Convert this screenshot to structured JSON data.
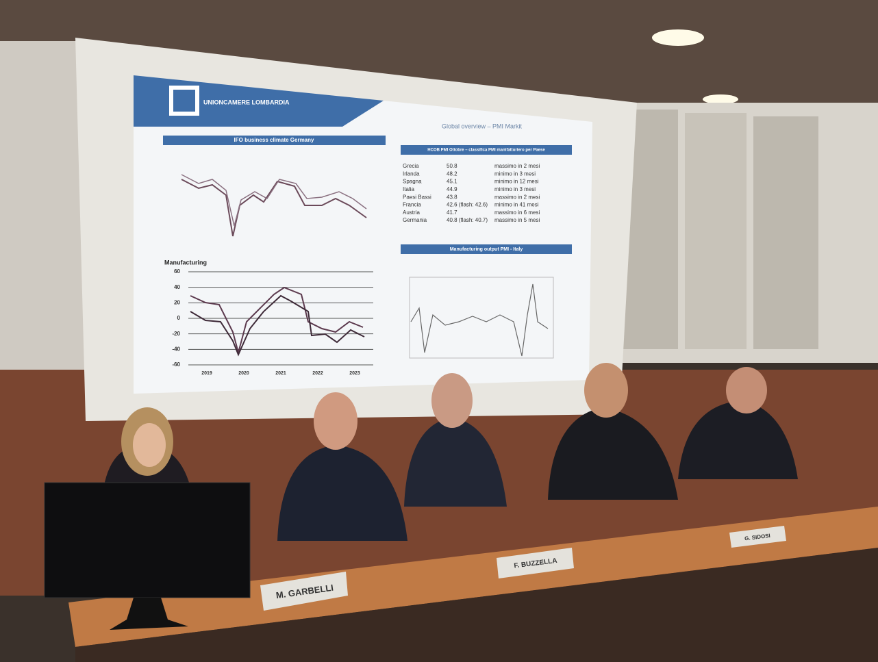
{
  "slide": {
    "logo": "UNIONCAMERE LOMBARDIA",
    "header": "Global overview – PMI Markit",
    "ifo_chart": {
      "title": "IFO business climate Germany"
    },
    "manufacturing_chart": {
      "title": "Manufacturing",
      "ylim": [
        -60,
        60
      ],
      "yticks": [
        60,
        40,
        20,
        0,
        -20,
        -40,
        -60
      ],
      "xticks": [
        2019,
        2020,
        2021,
        2022,
        2023
      ]
    },
    "pmi_table": {
      "title": "HCOB PMI Ottobre – classifica PMI manifatturiero per Paese",
      "rows": [
        [
          "Grecia",
          "50.8",
          "massimo in 2 mesi"
        ],
        [
          "Irlanda",
          "48.2",
          "minimo in 3 mesi"
        ],
        [
          "Spagna",
          "45.1",
          "minimo in 12 mesi"
        ],
        [
          "Italia",
          "44.9",
          "minimo in 3 mesi"
        ],
        [
          "Paesi Bassi",
          "43.8",
          "massimo in 2 mesi"
        ],
        [
          "Francia",
          "42.6 (flash: 42.6)",
          "minimo in 41 mesi"
        ],
        [
          "Austria",
          "41.7",
          "massimo in 6 mesi"
        ],
        [
          "Germania",
          "40.8 (flash: 40.7)",
          "massimo in 5 mesi"
        ]
      ]
    },
    "italy_chart": {
      "title": "Manufacturing output PMI - Italy"
    }
  },
  "name_cards": [
    "M. GARBELLI",
    "F. BUZZELLA",
    "G. SIDOSI"
  ]
}
